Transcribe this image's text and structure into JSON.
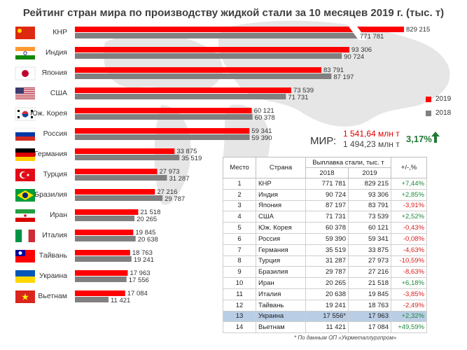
{
  "title": "Рейтинг стран мира по производству жидкой стали за 10 месяцев 2019 г. (тыс. т)",
  "colors": {
    "y2019": "#ff0000",
    "y2018": "#808080",
    "positive": "#1e8a3c",
    "negative": "#e01a1a",
    "highlight": "#b9cde5"
  },
  "legend": [
    {
      "label": "2019",
      "color": "#ff0000"
    },
    {
      "label": "2018",
      "color": "#808080"
    }
  ],
  "world": {
    "label": "МИР:",
    "value_2019": "1 541,64 млн т",
    "value_2018": "1 494,23 млн т",
    "change": "3,17%"
  },
  "chart_data": {
    "type": "bar",
    "orientation": "horizontal",
    "title": "Рейтинг стран мира по производству жидкой стали за 10 месяцев 2019 г. (тыс. т)",
    "categories": [
      "КНР",
      "Индия",
      "Япония",
      "США",
      "Юж. Корея",
      "Россия",
      "Германия",
      "Турция",
      "Бразилия",
      "Иран",
      "Италия",
      "Тайвань",
      "Украина",
      "Вьетнам"
    ],
    "flags": [
      "china-flag-icon",
      "india-flag-icon",
      "japan-flag-icon",
      "usa-flag-icon",
      "south-korea-flag-icon",
      "russia-flag-icon",
      "germany-flag-icon",
      "turkey-flag-icon",
      "brazil-flag-icon",
      "iran-flag-icon",
      "italy-flag-icon",
      "taiwan-flag-icon",
      "ukraine-flag-icon",
      "vietnam-flag-icon"
    ],
    "series": [
      {
        "name": "2019",
        "color": "#ff0000",
        "values": [
          829215,
          93306,
          83791,
          73539,
          60121,
          59341,
          33875,
          27973,
          27216,
          21518,
          19845,
          18763,
          17963,
          17084
        ],
        "labels": [
          "829 215",
          "93 306",
          "83 791",
          "73 539",
          "60 121",
          "59 341",
          "33 875",
          "27 973",
          "27 216",
          "21 518",
          "19 845",
          "18 763",
          "17 963",
          "17 084"
        ]
      },
      {
        "name": "2018",
        "color": "#808080",
        "values": [
          771781,
          90724,
          87197,
          71731,
          60378,
          59390,
          35519,
          31287,
          29787,
          20265,
          20638,
          19241,
          17556,
          11421
        ],
        "labels": [
          "771 781",
          "90 724",
          "87 197",
          "71 731",
          "60 378",
          "59 390",
          "35 519",
          "31 287",
          "29 787",
          "20 265",
          "20 638",
          "19 241",
          "17 556",
          "11 421"
        ]
      }
    ],
    "axis_break": true
  },
  "table": {
    "headers": {
      "place": "Место",
      "country": "Страна",
      "group": "Выплавка стали, тыс. т",
      "y2018": "2018",
      "y2019": "2019",
      "change": "+/-,%"
    },
    "rows": [
      {
        "place": "1",
        "country": "КНР",
        "v2018": "771 781",
        "v2019": "829 215",
        "change": "+7,44%",
        "sign": "pos"
      },
      {
        "place": "2",
        "country": "Индия",
        "v2018": "90 724",
        "v2019": "93 306",
        "change": "+2,85%",
        "sign": "pos"
      },
      {
        "place": "3",
        "country": "Япония",
        "v2018": "87 197",
        "v2019": "83 791",
        "change": "-3,91%",
        "sign": "neg"
      },
      {
        "place": "4",
        "country": "США",
        "v2018": "71 731",
        "v2019": "73 539",
        "change": "+2,52%",
        "sign": "pos"
      },
      {
        "place": "5",
        "country": "Юж. Корея",
        "v2018": "60 378",
        "v2019": "60 121",
        "change": "-0,43%",
        "sign": "neg"
      },
      {
        "place": "6",
        "country": "Россия",
        "v2018": "59 390",
        "v2019": "59 341",
        "change": "-0,08%",
        "sign": "neg"
      },
      {
        "place": "7",
        "country": "Германия",
        "v2018": "35 519",
        "v2019": "33 875",
        "change": "-4,63%",
        "sign": "neg"
      },
      {
        "place": "8",
        "country": "Турция",
        "v2018": "31 287",
        "v2019": "27 973",
        "change": "-10,59%",
        "sign": "neg"
      },
      {
        "place": "9",
        "country": "Бразилия",
        "v2018": "29 787",
        "v2019": "27 216",
        "change": "-8,63%",
        "sign": "neg"
      },
      {
        "place": "10",
        "country": "Иран",
        "v2018": "20 265",
        "v2019": "21 518",
        "change": "+6,18%",
        "sign": "pos"
      },
      {
        "place": "11",
        "country": "Италия",
        "v2018": "20 638",
        "v2019": "19 845",
        "change": "-3,85%",
        "sign": "neg"
      },
      {
        "place": "12",
        "country": "Тайвань",
        "v2018": "19 241",
        "v2019": "18 763",
        "change": "-2,49%",
        "sign": "neg"
      },
      {
        "place": "13",
        "country": "Украина",
        "v2018": "17 556*",
        "v2019": "17 963",
        "change": "+2,32%",
        "sign": "pos",
        "highlight": true
      },
      {
        "place": "14",
        "country": "Вьетнам",
        "v2018": "11 421",
        "v2019": "17 084",
        "change": "+49,59%",
        "sign": "pos"
      }
    ]
  },
  "source": "* По данным ОП «Укрметаллургпром»"
}
